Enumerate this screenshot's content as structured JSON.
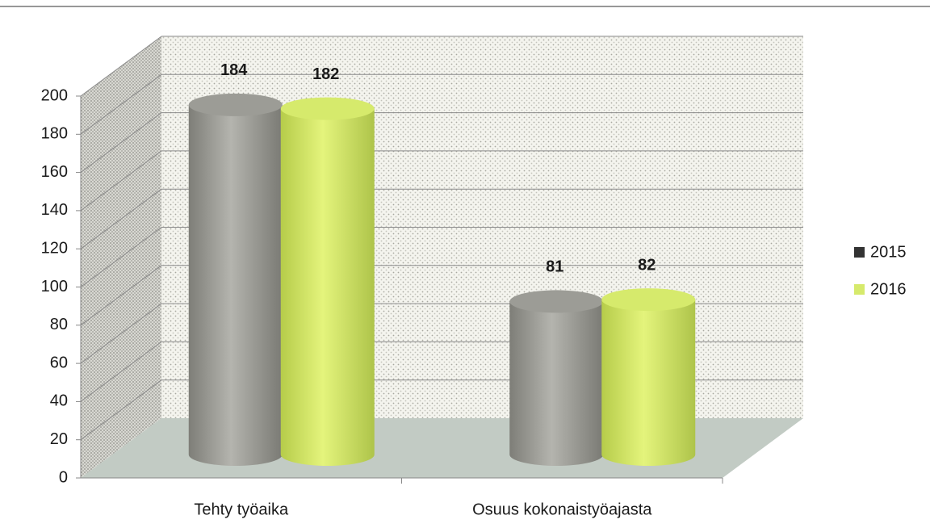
{
  "chart_data": {
    "type": "bar3d",
    "categories": [
      "Tehty työaika",
      "Osuus kokonaistyöajasta"
    ],
    "series": [
      {
        "name": "2015",
        "color": "#9c9c96",
        "values": [
          184,
          81
        ]
      },
      {
        "name": "2016",
        "color": "#d6ea6c",
        "values": [
          182,
          82
        ]
      }
    ],
    "ylim": [
      0,
      200
    ],
    "yticks": [
      0,
      20,
      40,
      60,
      80,
      100,
      120,
      140,
      160,
      180,
      200
    ],
    "grid": true,
    "legend": "right"
  }
}
